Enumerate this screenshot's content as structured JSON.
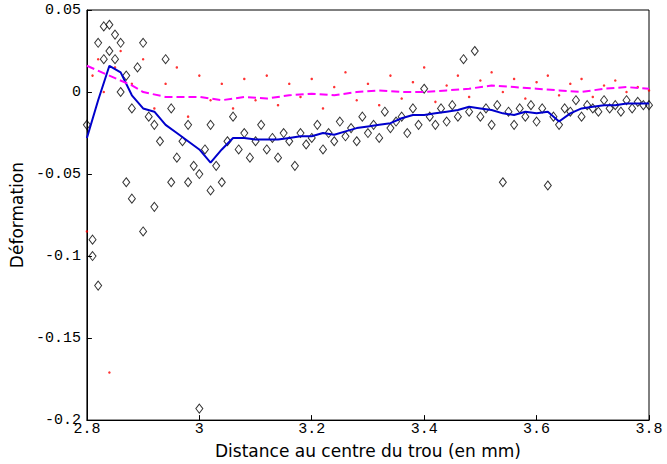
{
  "chart_data": {
    "type": "scatter",
    "x_label": "Distance au centre du trou (en mm)",
    "y_label": "Déformation",
    "xlim": [
      2.8,
      3.8
    ],
    "xticks": [
      2.8,
      3,
      3.2,
      3.4,
      3.6,
      3.8
    ],
    "ylim": [
      -0.2,
      0.05
    ],
    "yticks": [
      -0.2,
      -0.15,
      -0.1,
      -0.05,
      0,
      0.05
    ],
    "grid": false,
    "series": [
      {
        "type": "scatter",
        "color": "#000000",
        "marker": "diamond_open",
        "x": [
          2.8,
          2.81,
          2.81,
          2.82,
          2.82,
          2.83,
          2.83,
          2.84,
          2.84,
          2.85,
          2.85,
          2.86,
          2.86,
          2.87,
          2.87,
          2.88,
          2.88,
          2.89,
          2.9,
          2.9,
          2.91,
          2.92,
          2.92,
          2.93,
          2.94,
          2.95,
          2.95,
          2.96,
          2.97,
          2.98,
          2.98,
          2.99,
          3.0,
          3.0,
          3.01,
          3.02,
          3.02,
          3.03,
          3.04,
          3.05,
          3.06,
          3.07,
          3.08,
          3.09,
          3.1,
          3.11,
          3.12,
          3.13,
          3.14,
          3.15,
          3.16,
          3.17,
          3.18,
          3.19,
          3.2,
          3.21,
          3.22,
          3.23,
          3.24,
          3.25,
          3.26,
          3.27,
          3.28,
          3.29,
          3.3,
          3.31,
          3.32,
          3.33,
          3.34,
          3.35,
          3.36,
          3.37,
          3.38,
          3.39,
          3.4,
          3.41,
          3.42,
          3.43,
          3.44,
          3.45,
          3.46,
          3.47,
          3.48,
          3.49,
          3.5,
          3.51,
          3.52,
          3.53,
          3.54,
          3.55,
          3.56,
          3.57,
          3.58,
          3.59,
          3.6,
          3.61,
          3.62,
          3.63,
          3.64,
          3.65,
          3.66,
          3.67,
          3.68,
          3.69,
          3.7,
          3.71,
          3.72,
          3.73,
          3.74,
          3.75,
          3.76,
          3.77,
          3.78,
          3.79,
          3.8
        ],
        "values": [
          -0.02,
          -0.09,
          -0.1,
          -0.118,
          0.03,
          0.02,
          0.04,
          0.041,
          0.025,
          0.035,
          0.02,
          0.03,
          0.0,
          -0.055,
          0.01,
          -0.065,
          -0.01,
          0.015,
          -0.085,
          0.03,
          -0.015,
          -0.07,
          -0.02,
          -0.03,
          0.02,
          -0.055,
          -0.01,
          -0.04,
          -0.03,
          -0.055,
          -0.02,
          -0.045,
          -0.05,
          -0.193,
          -0.035,
          -0.06,
          -0.02,
          -0.045,
          -0.055,
          -0.03,
          -0.015,
          -0.035,
          -0.025,
          -0.04,
          -0.03,
          -0.02,
          -0.035,
          -0.028,
          -0.04,
          -0.025,
          -0.03,
          -0.045,
          -0.025,
          -0.032,
          -0.028,
          -0.02,
          -0.035,
          -0.025,
          -0.03,
          -0.018,
          -0.027,
          -0.022,
          -0.03,
          -0.015,
          -0.025,
          -0.02,
          -0.028,
          -0.012,
          -0.022,
          -0.018,
          -0.015,
          -0.025,
          -0.01,
          -0.02,
          0.002,
          -0.015,
          -0.02,
          -0.01,
          -0.018,
          -0.008,
          -0.015,
          0.02,
          -0.012,
          0.025,
          -0.015,
          -0.01,
          -0.02,
          -0.008,
          -0.055,
          -0.012,
          -0.02,
          -0.01,
          -0.015,
          -0.008,
          -0.018,
          -0.01,
          -0.057,
          -0.015,
          -0.02,
          -0.01,
          -0.012,
          -0.005,
          -0.015,
          -0.008,
          -0.01,
          -0.012,
          -0.005,
          -0.01,
          -0.008,
          -0.012,
          -0.005,
          -0.01,
          -0.006,
          -0.008,
          -0.008
        ]
      },
      {
        "type": "scatter",
        "color": "#ff0000",
        "marker": "point",
        "x": [
          2.8,
          2.81,
          2.82,
          2.83,
          2.84,
          2.85,
          2.86,
          2.88,
          2.9,
          2.92,
          2.94,
          2.96,
          2.98,
          3.0,
          3.02,
          3.04,
          3.06,
          3.08,
          3.1,
          3.12,
          3.14,
          3.16,
          3.18,
          3.2,
          3.22,
          3.24,
          3.26,
          3.28,
          3.3,
          3.32,
          3.34,
          3.36,
          3.38,
          3.4,
          3.42,
          3.44,
          3.46,
          3.48,
          3.5,
          3.52,
          3.54,
          3.56,
          3.58,
          3.6,
          3.62,
          3.64,
          3.66,
          3.68,
          3.7,
          3.72,
          3.74,
          3.76,
          3.78,
          3.8
        ],
        "values": [
          -0.085,
          0.01,
          0.02,
          0.0,
          -0.171,
          0.015,
          0.025,
          0.005,
          0.02,
          -0.01,
          0.005,
          0.015,
          -0.015,
          0.01,
          -0.005,
          0.005,
          -0.01,
          0.008,
          -0.005,
          0.01,
          -0.008,
          0.005,
          -0.003,
          0.008,
          -0.01,
          0.003,
          0.012,
          -0.005,
          0.005,
          -0.008,
          0.01,
          -0.004,
          0.006,
          0.015,
          -0.006,
          0.004,
          0.01,
          -0.003,
          0.007,
          0.012,
          0.0,
          0.008,
          -0.004,
          0.006,
          0.01,
          -0.002,
          0.005,
          0.008,
          -0.003,
          0.004,
          0.007,
          0.0,
          0.003,
          0.001
        ]
      },
      {
        "type": "line",
        "color": "#0000cc",
        "line_style": "solid",
        "x": [
          2.8,
          2.82,
          2.84,
          2.86,
          2.88,
          2.9,
          2.92,
          2.94,
          2.96,
          2.98,
          3.0,
          3.02,
          3.04,
          3.06,
          3.08,
          3.1,
          3.12,
          3.14,
          3.16,
          3.18,
          3.2,
          3.22,
          3.24,
          3.26,
          3.28,
          3.3,
          3.32,
          3.34,
          3.36,
          3.38,
          3.4,
          3.42,
          3.44,
          3.46,
          3.48,
          3.5,
          3.52,
          3.54,
          3.56,
          3.58,
          3.6,
          3.62,
          3.64,
          3.66,
          3.68,
          3.7,
          3.72,
          3.74,
          3.76,
          3.78,
          3.8
        ],
        "values": [
          -0.028,
          -0.005,
          0.016,
          0.012,
          -0.002,
          -0.01,
          -0.012,
          -0.02,
          -0.025,
          -0.03,
          -0.035,
          -0.043,
          -0.035,
          -0.028,
          -0.028,
          -0.029,
          -0.029,
          -0.029,
          -0.028,
          -0.027,
          -0.027,
          -0.025,
          -0.026,
          -0.024,
          -0.022,
          -0.021,
          -0.02,
          -0.019,
          -0.016,
          -0.014,
          -0.014,
          -0.013,
          -0.012,
          -0.011,
          -0.009,
          -0.01,
          -0.011,
          -0.013,
          -0.014,
          -0.012,
          -0.013,
          -0.012,
          -0.018,
          -0.013,
          -0.01,
          -0.009,
          -0.008,
          -0.008,
          -0.007,
          -0.007,
          -0.007
        ]
      },
      {
        "type": "line",
        "color": "#ff00ff",
        "line_style": "dashed",
        "x": [
          2.8,
          2.84,
          2.88,
          2.9,
          2.94,
          3.0,
          3.04,
          3.08,
          3.12,
          3.16,
          3.2,
          3.24,
          3.28,
          3.32,
          3.36,
          3.4,
          3.44,
          3.48,
          3.52,
          3.56,
          3.6,
          3.64,
          3.68,
          3.72,
          3.76,
          3.8
        ],
        "values": [
          0.016,
          0.01,
          0.004,
          0.0,
          -0.003,
          -0.003,
          -0.005,
          -0.003,
          -0.004,
          -0.002,
          -0.001,
          -0.002,
          0.0,
          0.001,
          0.0,
          0.0,
          0.001,
          0.002,
          0.004,
          0.003,
          0.002,
          0.001,
          0.0,
          0.002,
          0.003,
          0.002
        ]
      }
    ]
  }
}
